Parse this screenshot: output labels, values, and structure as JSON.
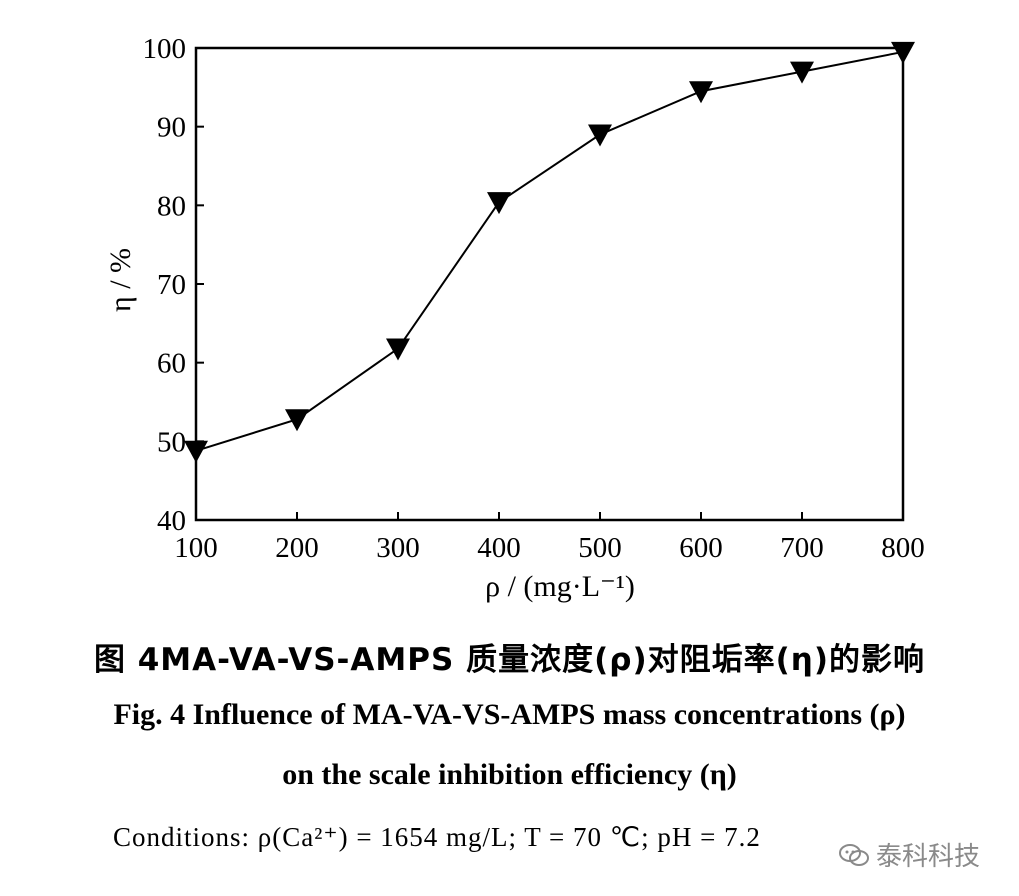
{
  "chart_data": {
    "type": "line",
    "x": [
      100,
      200,
      300,
      400,
      500,
      600,
      700,
      800
    ],
    "series": [
      {
        "values": [
          48.8,
          52.8,
          61.8,
          80.4,
          89.0,
          94.5,
          97.0,
          99.5
        ],
        "marker": "down-triangle",
        "color": "#000000"
      }
    ],
    "xlabel": "ρ / (mg·L⁻¹)",
    "ylabel": "η / %",
    "xlim": [
      100,
      800
    ],
    "ylim": [
      40,
      100
    ],
    "xticks": [
      100,
      200,
      300,
      400,
      500,
      600,
      700,
      800
    ],
    "yticks": [
      40,
      50,
      60,
      70,
      80,
      90,
      100
    ],
    "grid": false
  },
  "caption": {
    "cn": "图 4MA-VA-VS-AMPS 质量浓度(ρ)对阻垢率(η)的影响",
    "en_line1": "Fig. 4    Influence of MA-VA-VS-AMPS mass concentrations (ρ)",
    "en_line2": "on the scale inhibition efficiency (η)"
  },
  "conditions": "Conditions: ρ(Ca²⁺) = 1654 mg/L; T = 70 ℃; pH = 7.2",
  "watermark": "泰科科技"
}
